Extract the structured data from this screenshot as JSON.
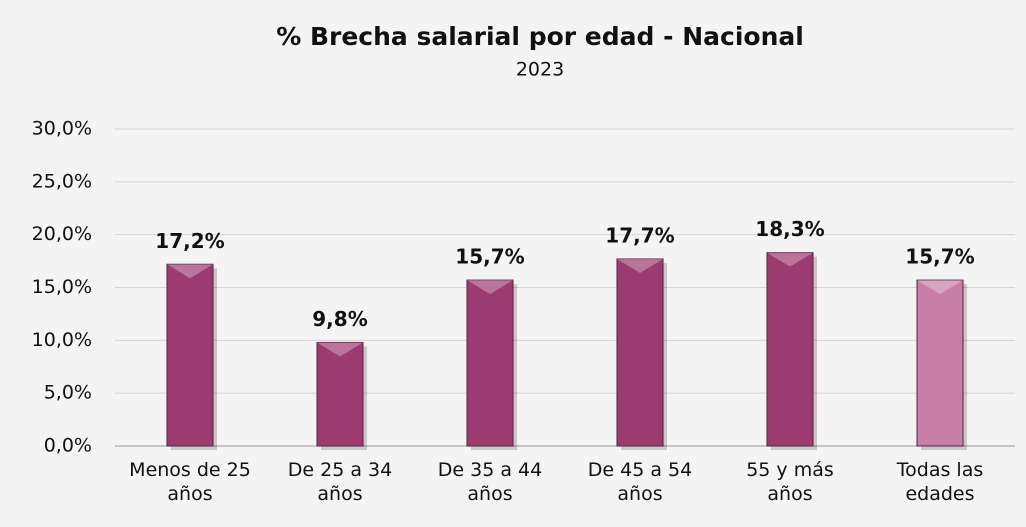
{
  "chart_data": {
    "type": "bar",
    "title": "% Brecha salarial por edad - Nacional",
    "subtitle": "2023",
    "categories": [
      "Menos de 25 años",
      "De 25 a 34 años",
      "De 35 a 44 años",
      "De 45 a 54 años",
      "55 y más años",
      "Todas las edades"
    ],
    "values": [
      17.2,
      9.8,
      15.7,
      17.7,
      18.3,
      15.7
    ],
    "value_labels": [
      "17,2%",
      "9,8%",
      "15,7%",
      "17,7%",
      "18,3%",
      "15,7%"
    ],
    "colors": [
      "#9c3b6f",
      "#9c3b6f",
      "#9c3b6f",
      "#9c3b6f",
      "#9c3b6f",
      "#c77fa5"
    ],
    "ylim": [
      0,
      30
    ],
    "yticks": [
      {
        "value": 0,
        "label": "0,0%"
      },
      {
        "value": 5,
        "label": "5,0%"
      },
      {
        "value": 10,
        "label": "10,0%"
      },
      {
        "value": 15,
        "label": "15,0%"
      },
      {
        "value": 20,
        "label": "20,0%"
      },
      {
        "value": 25,
        "label": "25,0%"
      },
      {
        "value": 30,
        "label": "30,0%"
      }
    ],
    "grid": true
  }
}
